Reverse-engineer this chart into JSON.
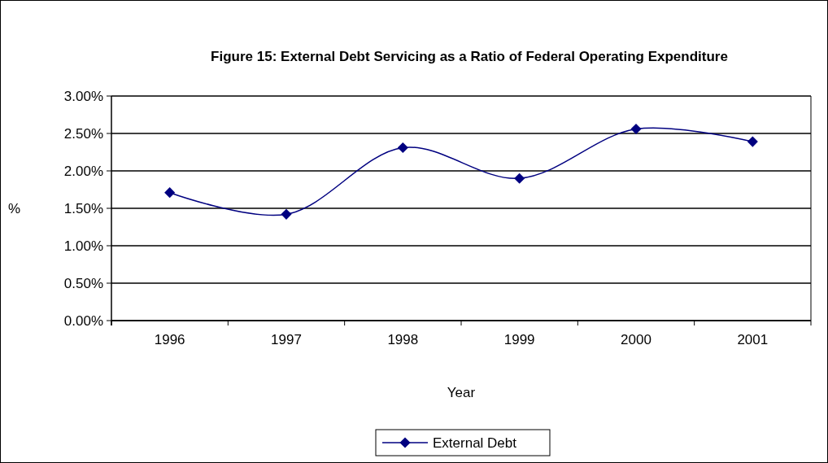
{
  "chart_data": {
    "type": "line",
    "title": "Figure 15: External Debt Servicing as a Ratio of Federal Operating Expenditure",
    "xlabel": "Year",
    "ylabel": "%",
    "categories": [
      "1996",
      "1997",
      "1998",
      "1999",
      "2000",
      "2001"
    ],
    "series": [
      {
        "name": "External Debt",
        "color": "#000080",
        "values": [
          1.71,
          1.42,
          2.31,
          1.9,
          2.56,
          2.39
        ]
      }
    ],
    "ylim": [
      0,
      3
    ],
    "yticks": [
      {
        "value": 0,
        "label": "0.00%"
      },
      {
        "value": 0.5,
        "label": "0.50%"
      },
      {
        "value": 1,
        "label": "1.00%"
      },
      {
        "value": 1.5,
        "label": "1.50%"
      },
      {
        "value": 2,
        "label": "2.00%"
      },
      {
        "value": 2.5,
        "label": "2.50%"
      },
      {
        "value": 3,
        "label": "3.00%"
      }
    ],
    "grid": "y",
    "legend": "bottom",
    "marker": "diamond",
    "line_style": "solid"
  }
}
